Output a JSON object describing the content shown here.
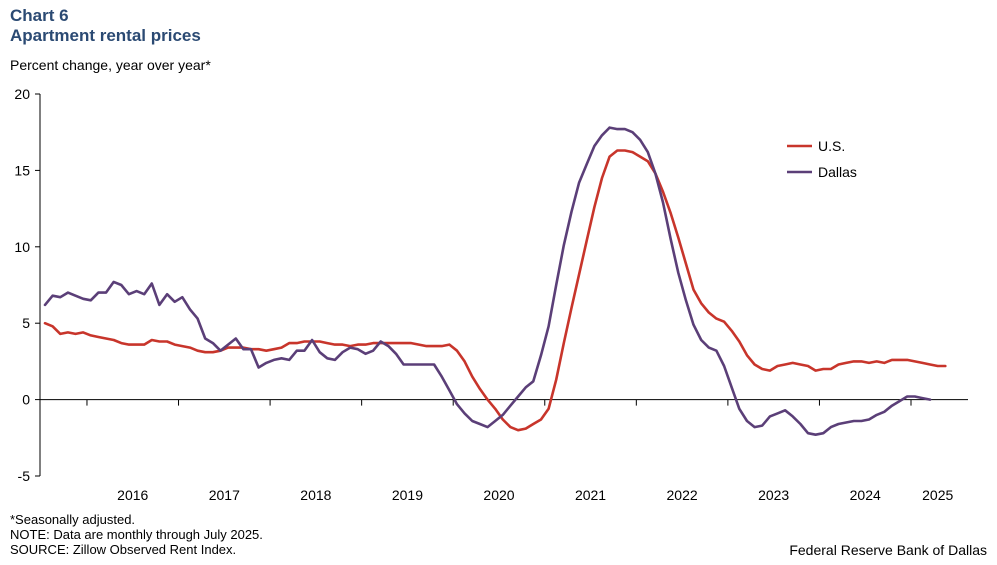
{
  "header": {
    "chart_number": "Chart 6",
    "title": "Apartment rental prices",
    "ylabel": "Percent change, year over year*"
  },
  "notes": [
    "*Seasonally adjusted.",
    "NOTE: Data are monthly through July 2025.",
    "SOURCE: Zillow Observed Rent Index."
  ],
  "source_org": "Federal Reserve Bank of Dallas",
  "colors": {
    "us": "#c8352b",
    "dallas": "#5b3f78",
    "axis": "#000000"
  },
  "chart_data": {
    "type": "line",
    "title": "Apartment rental prices",
    "ylabel": "Percent change, year over year*",
    "ylim": [
      -5,
      20
    ],
    "yticks": [
      -5,
      0,
      5,
      10,
      15,
      20
    ],
    "x_start": "2015-07",
    "x_end": "2025-07",
    "xtick_labels": [
      "2016",
      "2017",
      "2018",
      "2019",
      "2020",
      "2021",
      "2022",
      "2023",
      "2024",
      "2025"
    ],
    "grid": false,
    "legend": "top-right",
    "series": [
      {
        "name": "U.S.",
        "key": "us",
        "values": [
          5.0,
          4.8,
          4.3,
          4.4,
          4.3,
          4.4,
          4.2,
          4.1,
          4.0,
          3.9,
          3.7,
          3.6,
          3.6,
          3.6,
          3.9,
          3.8,
          3.8,
          3.6,
          3.5,
          3.4,
          3.2,
          3.1,
          3.1,
          3.2,
          3.4,
          3.4,
          3.4,
          3.3,
          3.3,
          3.2,
          3.3,
          3.4,
          3.7,
          3.7,
          3.8,
          3.8,
          3.8,
          3.7,
          3.6,
          3.6,
          3.5,
          3.6,
          3.6,
          3.7,
          3.7,
          3.7,
          3.7,
          3.7,
          3.7,
          3.6,
          3.5,
          3.5,
          3.5,
          3.6,
          3.2,
          2.5,
          1.5,
          0.7,
          0.0,
          -0.6,
          -1.3,
          -1.8,
          -2.0,
          -1.9,
          -1.6,
          -1.3,
          -0.6,
          1.3,
          3.7,
          6.0,
          8.2,
          10.4,
          12.6,
          14.5,
          15.9,
          16.3,
          16.3,
          16.2,
          15.9,
          15.6,
          14.8,
          13.6,
          12.2,
          10.6,
          8.9,
          7.2,
          6.3,
          5.7,
          5.3,
          5.1,
          4.5,
          3.8,
          2.9,
          2.3,
          2.0,
          1.9,
          2.2,
          2.3,
          2.4,
          2.3,
          2.2,
          1.9,
          2.0,
          2.0,
          2.3,
          2.4,
          2.5,
          2.5,
          2.4,
          2.5,
          2.4,
          2.6,
          2.6,
          2.6,
          2.5,
          2.4,
          2.3,
          2.2,
          2.2
        ]
      },
      {
        "name": "Dallas",
        "key": "dallas",
        "values": [
          6.2,
          6.8,
          6.7,
          7.0,
          6.8,
          6.6,
          6.5,
          7.0,
          7.0,
          7.7,
          7.5,
          6.9,
          7.1,
          6.9,
          7.6,
          6.2,
          6.9,
          6.4,
          6.7,
          5.9,
          5.3,
          4.0,
          3.7,
          3.2,
          3.6,
          4.0,
          3.3,
          3.3,
          2.1,
          2.4,
          2.6,
          2.7,
          2.6,
          3.2,
          3.2,
          3.9,
          3.1,
          2.7,
          2.6,
          3.1,
          3.4,
          3.3,
          3.0,
          3.2,
          3.8,
          3.5,
          3.0,
          2.3,
          2.3,
          2.3,
          2.3,
          2.3,
          1.5,
          0.6,
          -0.3,
          -0.9,
          -1.4,
          -1.6,
          -1.8,
          -1.4,
          -1.0,
          -0.4,
          0.2,
          0.8,
          1.2,
          2.9,
          4.8,
          7.5,
          10.1,
          12.3,
          14.2,
          15.4,
          16.6,
          17.3,
          17.8,
          17.7,
          17.7,
          17.5,
          17.0,
          16.2,
          14.8,
          12.9,
          10.5,
          8.3,
          6.5,
          4.9,
          3.9,
          3.4,
          3.2,
          2.2,
          0.8,
          -0.6,
          -1.4,
          -1.8,
          -1.7,
          -1.1,
          -0.9,
          -0.7,
          -1.1,
          -1.6,
          -2.2,
          -2.3,
          -2.2,
          -1.8,
          -1.6,
          -1.5,
          -1.4,
          -1.4,
          -1.3,
          -1.0,
          -0.8,
          -0.4,
          -0.1,
          0.2,
          0.2,
          0.1,
          0.0
        ]
      }
    ]
  }
}
